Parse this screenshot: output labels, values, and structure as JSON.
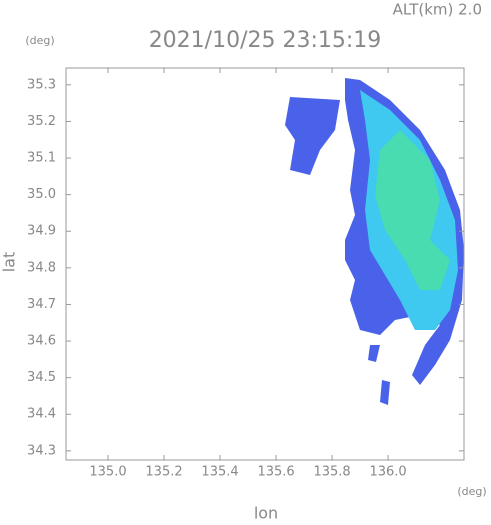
{
  "chart_data": {
    "type": "radar",
    "title": "2021/10/25 23:15:19",
    "subtitle": "ALT(km)  2.0",
    "x_label": "lon",
    "y_label": "lat",
    "x_unit": "(deg)",
    "y_unit": "(deg)",
    "xlim": [
      134.85,
      136.271
    ],
    "ylim": [
      34.275,
      35.346
    ],
    "xticks": [
      {
        "value": 135,
        "label": "135.0"
      },
      135.2,
      135.4,
      135.6,
      135.8,
      {
        "value": 136,
        "label": "136.0"
      }
    ],
    "yticks": [
      34.3,
      34.4,
      34.5,
      34.6,
      34.7,
      34.8,
      34.9,
      {
        "value": 35,
        "label": "35.0"
      },
      35.1,
      35.2,
      35.3
    ]
  }
}
